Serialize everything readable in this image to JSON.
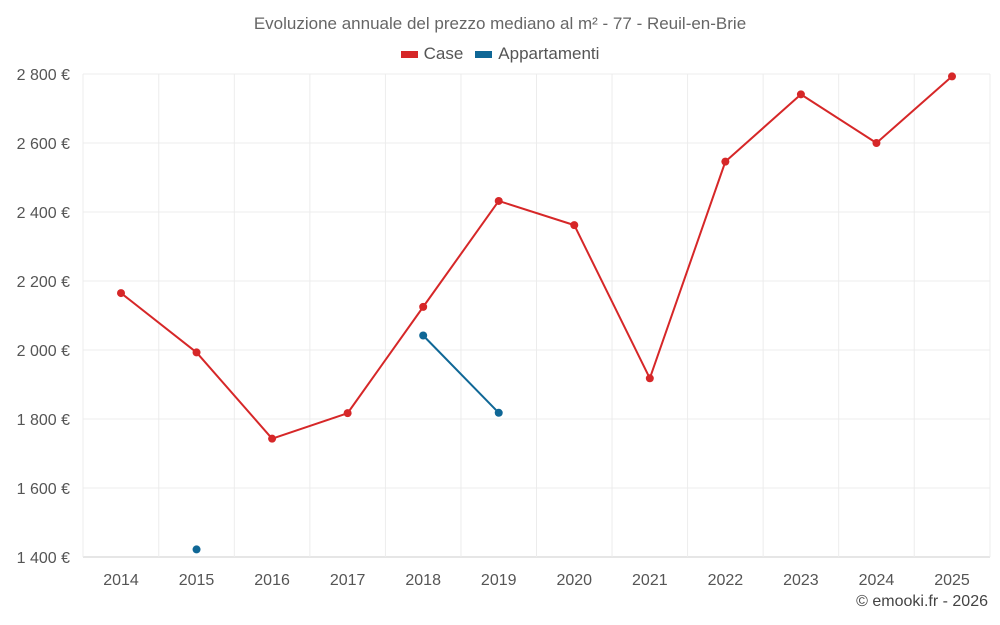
{
  "chart_data": {
    "type": "line",
    "title": "Evoluzione annuale del prezzo mediano al m² - 77 - Reuil-en-Brie",
    "categories": [
      "2014",
      "2015",
      "2016",
      "2017",
      "2018",
      "2019",
      "2020",
      "2021",
      "2022",
      "2023",
      "2024",
      "2025"
    ],
    "y_ticks": [
      1400,
      1600,
      1800,
      2000,
      2200,
      2400,
      2600,
      2800
    ],
    "y_tick_labels": [
      "1 400 €",
      "1 600 €",
      "1 800 €",
      "2 000 €",
      "2 200 €",
      "2 400 €",
      "2 600 €",
      "2 800 €"
    ],
    "ylim": [
      1400,
      2800
    ],
    "grid": true,
    "legend_position": "top-center",
    "series": [
      {
        "name": "Case",
        "color": "#d62728",
        "values": [
          2165,
          1993,
          1743,
          1817,
          2125,
          2432,
          2362,
          1918,
          2546,
          2741,
          2600,
          2793
        ]
      },
      {
        "name": "Appartamenti",
        "color": "#0f6796",
        "values": [
          null,
          1422,
          null,
          null,
          2042,
          1818,
          null,
          null,
          null,
          null,
          null,
          null
        ]
      }
    ]
  },
  "credit": "© emooki.fr - 2026"
}
